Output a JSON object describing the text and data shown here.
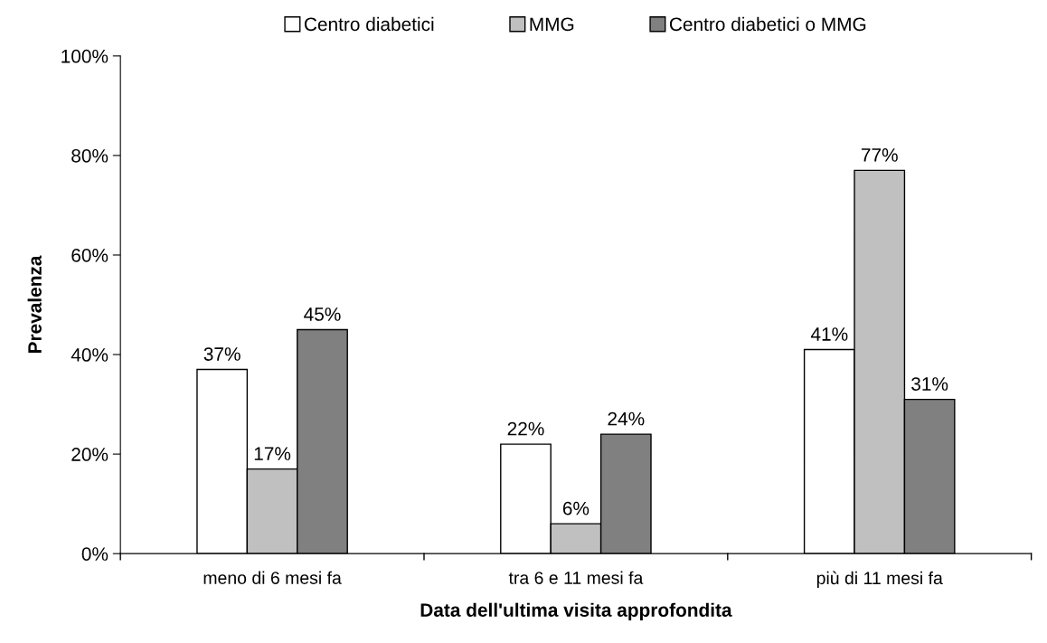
{
  "chart_data": {
    "type": "bar",
    "xlabel": "Data dell'ultima visita approfondita",
    "ylabel": "Prevalenza",
    "categories": [
      "meno di 6 mesi fa",
      "tra 6 e 11 mesi fa",
      "più di 11 mesi fa"
    ],
    "series": [
      {
        "name": "Centro diabetici",
        "color": "#ffffff",
        "values": [
          37,
          22,
          41
        ],
        "value_labels": [
          "37%",
          "22%",
          "41%"
        ]
      },
      {
        "name": "MMG",
        "color": "#c0c0c0",
        "values": [
          17,
          6,
          77
        ],
        "value_labels": [
          "17%",
          "6%",
          "77%"
        ]
      },
      {
        "name": "Centro diabetici o MMG",
        "color": "#808080",
        "values": [
          45,
          24,
          31
        ],
        "value_labels": [
          "45%",
          "24%",
          "31%"
        ]
      }
    ],
    "ylim": [
      0,
      100
    ],
    "yticks": [
      {
        "value": 0,
        "label": "0%"
      },
      {
        "value": 20,
        "label": "20%"
      },
      {
        "value": 40,
        "label": "40%"
      },
      {
        "value": 60,
        "label": "60%"
      },
      {
        "value": 80,
        "label": "80%"
      },
      {
        "value": 100,
        "label": "100%"
      }
    ],
    "grid": false,
    "legend": "top"
  }
}
